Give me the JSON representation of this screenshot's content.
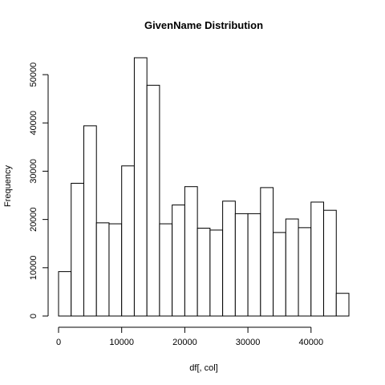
{
  "chart_data": {
    "type": "bar",
    "title": "GivenName  Distribution",
    "xlabel": "df[, col]",
    "ylabel": "Frequency",
    "bins": [
      {
        "start": 0,
        "end": 2000,
        "count": 9200
      },
      {
        "start": 2000,
        "end": 4000,
        "count": 27500
      },
      {
        "start": 4000,
        "end": 6000,
        "count": 39400
      },
      {
        "start": 6000,
        "end": 8000,
        "count": 19300
      },
      {
        "start": 8000,
        "end": 10000,
        "count": 19100
      },
      {
        "start": 10000,
        "end": 12000,
        "count": 31100
      },
      {
        "start": 12000,
        "end": 14000,
        "count": 53500
      },
      {
        "start": 14000,
        "end": 16000,
        "count": 47800
      },
      {
        "start": 16000,
        "end": 18000,
        "count": 19100
      },
      {
        "start": 18000,
        "end": 20000,
        "count": 23000
      },
      {
        "start": 20000,
        "end": 22000,
        "count": 26800
      },
      {
        "start": 22000,
        "end": 24000,
        "count": 18200
      },
      {
        "start": 24000,
        "end": 26000,
        "count": 17800
      },
      {
        "start": 26000,
        "end": 28000,
        "count": 23800
      },
      {
        "start": 28000,
        "end": 30000,
        "count": 21200
      },
      {
        "start": 30000,
        "end": 32000,
        "count": 21200
      },
      {
        "start": 32000,
        "end": 34000,
        "count": 26600
      },
      {
        "start": 34000,
        "end": 36000,
        "count": 17300
      },
      {
        "start": 36000,
        "end": 38000,
        "count": 20100
      },
      {
        "start": 38000,
        "end": 40000,
        "count": 18300
      },
      {
        "start": 40000,
        "end": 42000,
        "count": 23600
      },
      {
        "start": 42000,
        "end": 44000,
        "count": 21900
      },
      {
        "start": 44000,
        "end": 46000,
        "count": 4700
      }
    ],
    "x_ticks": [
      {
        "value": 0,
        "label": "0"
      },
      {
        "value": 10000,
        "label": "10000"
      },
      {
        "value": 20000,
        "label": "20000"
      },
      {
        "value": 30000,
        "label": "30000"
      },
      {
        "value": 40000,
        "label": "40000"
      }
    ],
    "y_ticks": [
      {
        "value": 0,
        "label": "0"
      },
      {
        "value": 10000,
        "label": "10000"
      },
      {
        "value": 20000,
        "label": "20000"
      },
      {
        "value": 30000,
        "label": "30000"
      },
      {
        "value": 40000,
        "label": "40000"
      },
      {
        "value": 50000,
        "label": "50000"
      }
    ],
    "xlim": [
      0,
      46000
    ],
    "ylim": [
      0,
      53500
    ],
    "grid": false,
    "bar_fill": "#ffffff",
    "bar_stroke": "#000000"
  }
}
